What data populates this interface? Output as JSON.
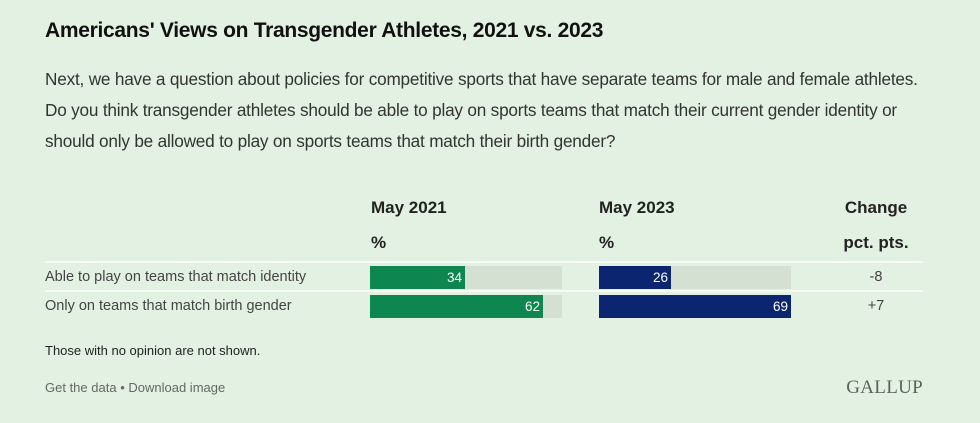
{
  "header": {
    "title": "Americans' Views on Transgender Athletes, 2021 vs. 2023",
    "question": "Next, we have a question about policies for competitive sports that have separate teams for male and female athletes. Do you think transgender athletes should be able to play on sports teams that match their current gender identity or should only be allowed to play on sports teams that match their birth gender?"
  },
  "columns": [
    {
      "title": "May 2021",
      "unit": "%"
    },
    {
      "title": "May 2023",
      "unit": "%"
    },
    {
      "title": "Change",
      "unit": "pct. pts."
    }
  ],
  "footer": {
    "note": "Those with no opinion are not shown.",
    "get_data": "Get the data",
    "separator": "•",
    "download": "Download image",
    "logo": "GALLUP"
  },
  "colors": {
    "background": "#e3f1e2",
    "series_2021": "#0e8650",
    "series_2023": "#0c2570",
    "track": "#d4e0d2"
  },
  "chart_data": {
    "type": "bar",
    "title": "Americans' Views on Transgender Athletes, 2021 vs. 2023",
    "categories": [
      "Able to play on teams that match identity",
      "Only on teams that match birth gender"
    ],
    "series": [
      {
        "name": "May 2021",
        "values": [
          34,
          62
        ]
      },
      {
        "name": "May 2023",
        "values": [
          26,
          69
        ]
      }
    ],
    "change": [
      "-8",
      "+7"
    ],
    "xlabel": "%",
    "ylabel": "",
    "xlim": [
      0,
      69
    ],
    "grid": false,
    "legend": "column-headers"
  }
}
